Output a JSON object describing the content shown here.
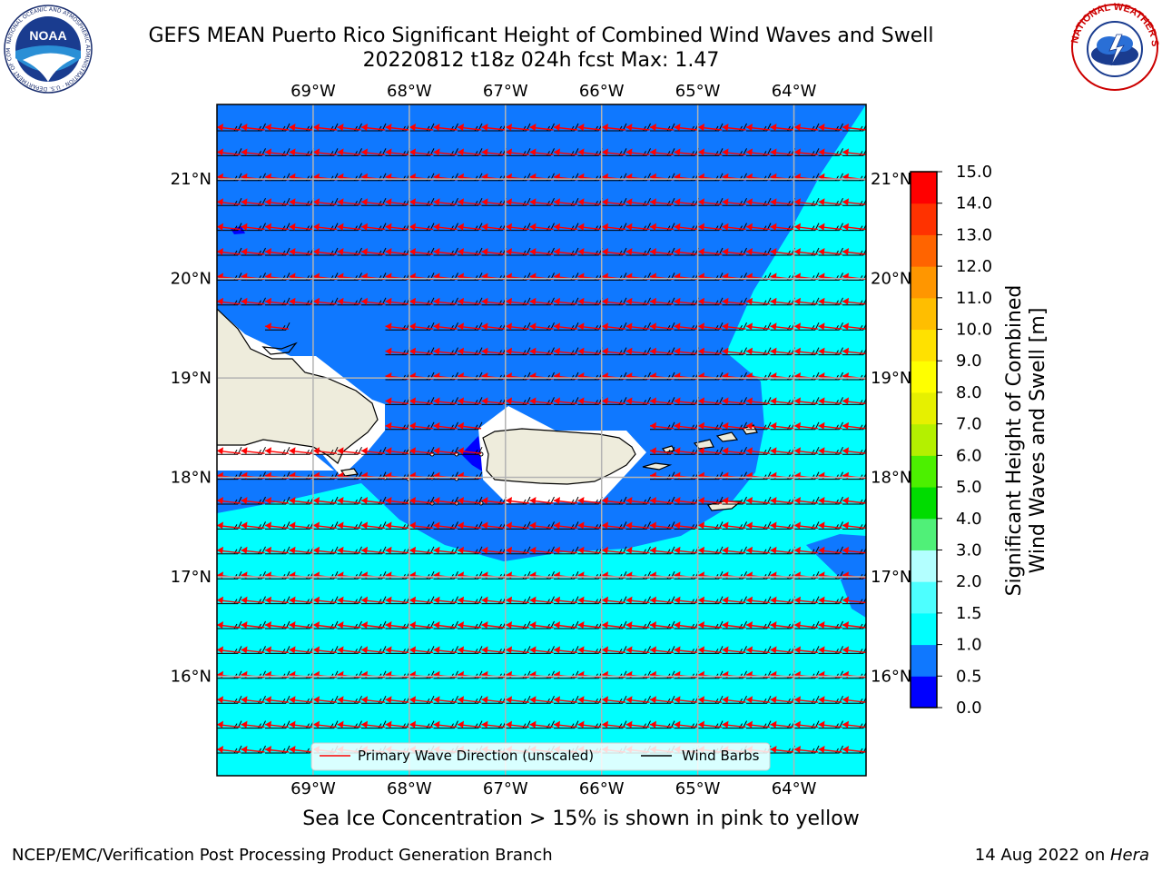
{
  "header": {
    "title_line1": "GEFS MEAN Puerto Rico Significant Height of Combined Wind Waves and Swell",
    "title_line2": "20220812 t18z 024h fcst   Max: 1.47"
  },
  "logos": {
    "left": "noaa-logo",
    "left_text": "NOAA",
    "left_ring_text": "NATIONAL OCEANIC AND ATMOSPHERIC ADMINISTRATION · U.S. DEPARTMENT OF COMMERCE",
    "right": "nws-logo",
    "right_ring_text": "NATIONAL WEATHER SERVICE"
  },
  "map": {
    "lon_labels": [
      "69°W",
      "68°W",
      "67°W",
      "66°W",
      "65°W",
      "64°W"
    ],
    "lat_labels": [
      "21°N",
      "20°N",
      "19°N",
      "18°N",
      "17°N",
      "16°N"
    ],
    "lon_range": [
      -70.0,
      -63.25
    ],
    "lat_range": [
      15.0,
      21.75
    ],
    "colors": {
      "sea_0_5_1_0": "#0f78ff",
      "sea_1_0_1_5": "#00ffff",
      "sea_0_0_0_5": "#0000ff",
      "land": "#eeecdc",
      "coast_mask": "#ffffff",
      "grid": "#b3b3b3",
      "wave_arrow": "#ff0000",
      "wind_barb": "#000000"
    }
  },
  "legend": {
    "wave_label": "Primary Wave Direction (unscaled)",
    "barb_label": "Wind Barbs"
  },
  "colorbar": {
    "title_line1": "Significant Height of Combined",
    "title_line2": "Wind Waves and Swell [m]",
    "tick_labels": [
      "0.0",
      "0.5",
      "1.0",
      "1.5",
      "2.0",
      "3.0",
      "4.0",
      "5.0",
      "6.0",
      "7.0",
      "8.0",
      "9.0",
      "10.0",
      "11.0",
      "12.0",
      "13.0",
      "14.0",
      "15.0"
    ],
    "colors": [
      "#0000ff",
      "#0f78ff",
      "#00ffff",
      "#4dffff",
      "#b3ffff",
      "#50f078",
      "#00dc00",
      "#4cf000",
      "#b4f000",
      "#e6f000",
      "#ffff00",
      "#ffe100",
      "#ffbe00",
      "#ff9600",
      "#ff6400",
      "#ff3200",
      "#ff0000"
    ]
  },
  "footer": {
    "note": "Sea Ice Concentration > 15% is shown in pink to yellow",
    "left": "NCEP/EMC/Verification Post Processing Product Generation Branch",
    "right_prefix": "14 Aug 2022 on ",
    "right_machine": "Hera"
  }
}
